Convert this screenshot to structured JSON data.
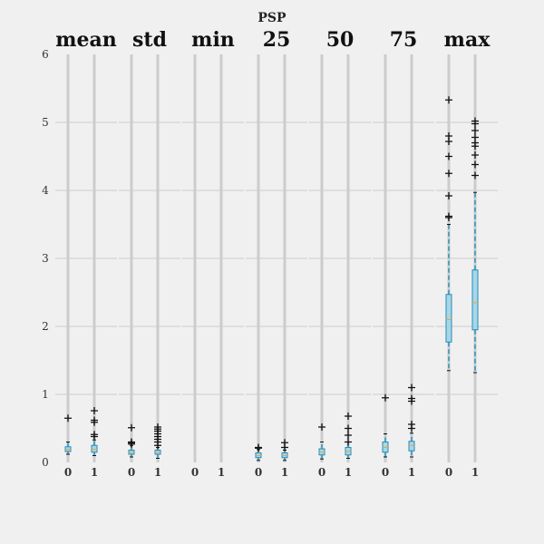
{
  "chart_data": {
    "type": "boxplot",
    "suptitle": "PSP",
    "ylim": [
      0,
      6
    ],
    "yticks": [
      "0",
      "1",
      "2",
      "3",
      "4",
      "5",
      "6"
    ],
    "grid": true,
    "colors": {
      "background": "#f0f0f0",
      "grid": "#cccccc",
      "box_fill": "#a9d6e5",
      "box_edge": "#1f8dbf",
      "whisker": "#1f8dbf",
      "median": "#e8a33a",
      "flier": "#111111"
    },
    "categories": [
      "0",
      "1"
    ],
    "panels": [
      {
        "title": "mean",
        "groups": [
          {
            "category": "0",
            "whislo": 0.12,
            "q1": 0.16,
            "med": 0.19,
            "q3": 0.23,
            "whishi": 0.3,
            "fliers": [
              0.65
            ]
          },
          {
            "category": "1",
            "whislo": 0.1,
            "q1": 0.15,
            "med": 0.19,
            "q3": 0.25,
            "whishi": 0.33,
            "fliers": [
              0.38,
              0.41,
              0.59,
              0.62,
              0.76
            ]
          }
        ]
      },
      {
        "title": "std",
        "groups": [
          {
            "category": "0",
            "whislo": 0.08,
            "q1": 0.12,
            "med": 0.15,
            "q3": 0.18,
            "whishi": 0.25,
            "fliers": [
              0.27,
              0.29,
              0.3,
              0.51
            ]
          },
          {
            "category": "1",
            "whislo": 0.06,
            "q1": 0.12,
            "med": 0.15,
            "q3": 0.18,
            "whishi": 0.22,
            "fliers": [
              0.25,
              0.3,
              0.34,
              0.38,
              0.42,
              0.46,
              0.49,
              0.52
            ]
          }
        ]
      },
      {
        "title": "min",
        "groups": [
          {
            "category": "0",
            "whislo": null,
            "q1": null,
            "med": null,
            "q3": null,
            "whishi": null,
            "fliers": []
          },
          {
            "category": "1",
            "whislo": null,
            "q1": null,
            "med": null,
            "q3": null,
            "whishi": null,
            "fliers": []
          }
        ]
      },
      {
        "title": "25",
        "groups": [
          {
            "category": "0",
            "whislo": 0.03,
            "q1": 0.07,
            "med": 0.1,
            "q3": 0.14,
            "whishi": 0.19,
            "fliers": [
              0.21,
              0.22
            ]
          },
          {
            "category": "1",
            "whislo": 0.03,
            "q1": 0.07,
            "med": 0.1,
            "q3": 0.14,
            "whishi": 0.18,
            "fliers": [
              0.22,
              0.29
            ]
          }
        ]
      },
      {
        "title": "50",
        "groups": [
          {
            "category": "0",
            "whislo": 0.05,
            "q1": 0.11,
            "med": 0.15,
            "q3": 0.2,
            "whishi": 0.3,
            "fliers": [
              0.52
            ]
          },
          {
            "category": "1",
            "whislo": 0.06,
            "q1": 0.11,
            "med": 0.16,
            "q3": 0.22,
            "whishi": 0.3,
            "fliers": [
              0.3,
              0.4,
              0.5,
              0.68
            ]
          }
        ]
      },
      {
        "title": "75",
        "groups": [
          {
            "category": "0",
            "whislo": 0.08,
            "q1": 0.15,
            "med": 0.22,
            "q3": 0.3,
            "whishi": 0.42,
            "fliers": [
              0.95
            ]
          },
          {
            "category": "1",
            "whislo": 0.08,
            "q1": 0.17,
            "med": 0.25,
            "q3": 0.31,
            "whishi": 0.43,
            "fliers": [
              0.5,
              0.56,
              0.9,
              0.94,
              1.1
            ]
          }
        ]
      },
      {
        "title": "max",
        "groups": [
          {
            "category": "0",
            "whislo": 1.35,
            "q1": 1.77,
            "med": 2.1,
            "q3": 2.47,
            "whishi": 3.5,
            "fliers": [
              3.6,
              3.62,
              3.92,
              4.25,
              4.5,
              4.72,
              4.8,
              5.33
            ]
          },
          {
            "category": "1",
            "whislo": 1.32,
            "q1": 1.95,
            "med": 2.35,
            "q3": 2.83,
            "whishi": 3.97,
            "fliers": [
              4.22,
              4.38,
              4.52,
              4.65,
              4.7,
              4.78,
              4.88,
              4.98,
              5.02
            ]
          }
        ]
      }
    ]
  }
}
